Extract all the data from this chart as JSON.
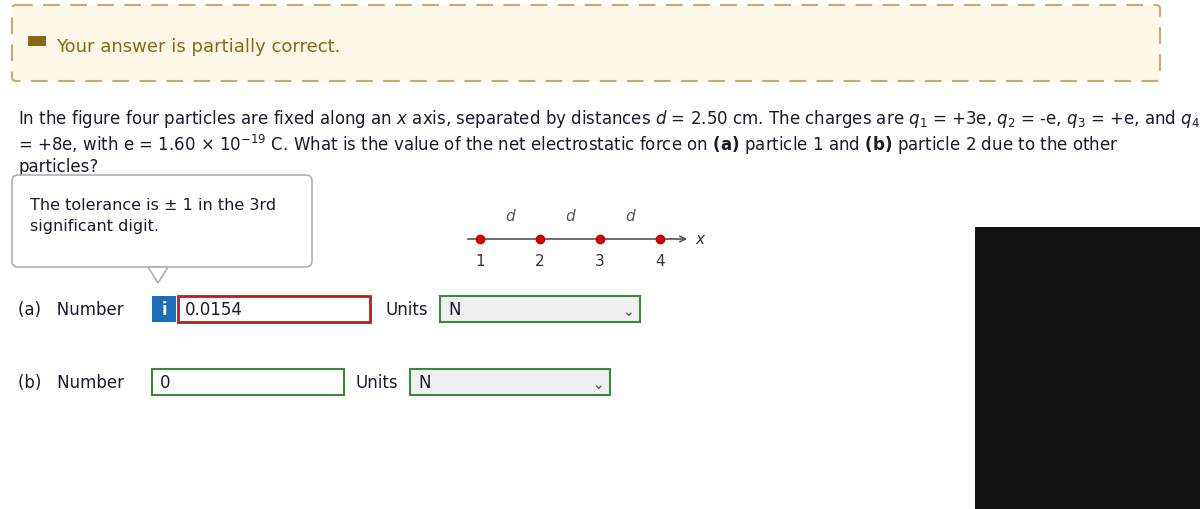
{
  "background_color": "#ffffff",
  "banner_bg": "#fdf8e8",
  "banner_border": "#c8a96e",
  "banner_icon_color": "#8B6914",
  "banner_text": "Your answer is partially correct.",
  "banner_text_color": "#8B6914",
  "problem_text_line1": "In the figure four particles are fixed along an x axis, separated by distances d = 2.50 cm. The charges are q₁ = +3e, q₂ = -e, q₃ = +e, and q₄",
  "problem_text_line2": "= +8e, with e = 1.60 × 10⁻¹⁹ C. What is the value of the net electrostatic force on (a) particle 1 and (b) particle 2 due to the other",
  "problem_text_line3": "particles?",
  "tolerance_text_l1": "The tolerance is ± 1 in the 3rd",
  "tolerance_text_l2": "significant digit.",
  "part_a_value": "0.0154",
  "part_b_value": "0",
  "units_value": "N",
  "input_border_a": "#b22222",
  "input_border_b": "#3a8a3a",
  "units_border": "#3a8a3a",
  "info_btn_bg": "#1a6eb5",
  "axis_line_color": "#555555",
  "particle_color": "#cc0000",
  "dark_box_color": "#111111"
}
